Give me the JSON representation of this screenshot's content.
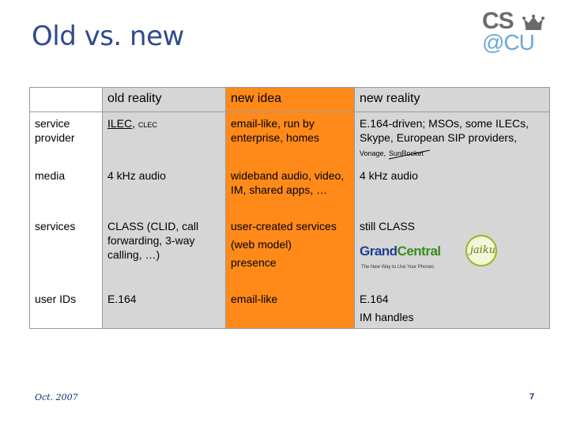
{
  "slide": {
    "title": "Old vs. new",
    "footer_date": "Oct. 2007",
    "page_number": "7"
  },
  "logo": {
    "line1": "CS",
    "line2": "@CU",
    "colors": {
      "cs": "#6b6b6b",
      "cu": "#6aa8d8",
      "crown": "#6b6b6b"
    }
  },
  "table": {
    "headers": [
      "",
      "old reality",
      "new idea",
      "new reality"
    ],
    "rows": [
      {
        "label": "service provider",
        "old_main": "ILEC",
        "old_sep": ",",
        "old_small": "CLEC",
        "new_idea": "email-like, run by enterprise, homes",
        "new_reality": "E.164-driven; MSOs, some ILECs, Skype, European SIP providers,",
        "new_reality_small_1": "Vonage,",
        "new_reality_small_2": "SunRocket"
      },
      {
        "label": "media",
        "old": "4 kHz audio",
        "new_idea": "wideband audio, video, IM, shared apps, …",
        "new_reality": "4 kHz audio"
      },
      {
        "label": "services",
        "old": "CLASS (CLID, call forwarding, 3-way calling, …)",
        "new_idea_1": "user-created services",
        "new_idea_2": "(web model)",
        "new_idea_3": "presence",
        "new_reality": "still CLASS",
        "logo_gc_part1": "Grand",
        "logo_gc_part2": "Central",
        "logo_gc_tag": "The New Way to Use Your Phones",
        "logo_jk": "jaiku"
      },
      {
        "label": "user IDs",
        "old": "E.164",
        "new_idea": "email-like",
        "new_reality_1": "E.164",
        "new_reality_2": "IM handles"
      }
    ]
  },
  "colors": {
    "title": "#2e4a8f",
    "gray_cell": "#d6d6d6",
    "orange_cell": "#ff8a1a",
    "footer": "#1b2f6b"
  }
}
